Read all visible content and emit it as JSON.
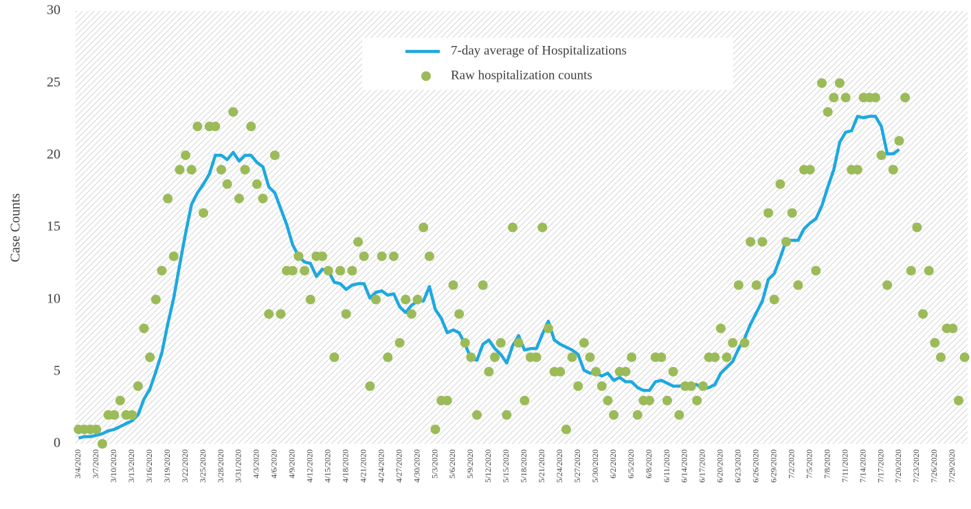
{
  "chart_data": {
    "type": "line",
    "y_label": "Case Counts",
    "ylim": [
      0,
      30
    ],
    "yticks": [
      0,
      5,
      10,
      15,
      20,
      25,
      30
    ],
    "grid": false,
    "legend": "top",
    "categories": [
      "3/4/2020",
      null,
      null,
      "3/7/2020",
      null,
      null,
      "3/10/2020",
      null,
      null,
      "3/13/2020",
      null,
      null,
      "3/16/2020",
      null,
      null,
      "3/19/2020",
      null,
      null,
      "3/22/2020",
      null,
      null,
      "3/25/2020",
      null,
      null,
      "3/28/2020",
      null,
      null,
      "3/31/2020",
      null,
      null,
      "4/3/2020",
      null,
      null,
      "4/6/2020",
      null,
      null,
      "4/9/2020",
      null,
      null,
      "4/12/2020",
      null,
      null,
      "4/15/2020",
      null,
      null,
      "4/18/2020",
      null,
      null,
      "4/21/2020",
      null,
      null,
      "4/24/2020",
      null,
      null,
      "4/27/2020",
      null,
      null,
      "4/30/2020",
      null,
      null,
      "5/3/2020",
      null,
      null,
      "5/6/2020",
      null,
      null,
      "5/9/2020",
      null,
      null,
      "5/12/2020",
      null,
      null,
      "5/15/2020",
      null,
      null,
      "5/18/2020",
      null,
      null,
      "5/21/2020",
      null,
      null,
      "5/24/2020",
      null,
      null,
      "5/27/2020",
      null,
      null,
      "5/30/2020",
      null,
      null,
      "6/2/2020",
      null,
      null,
      "6/5/2020",
      null,
      null,
      "6/8/2020",
      null,
      null,
      "6/11/2020",
      null,
      null,
      "6/14/2020",
      null,
      null,
      "6/17/2020",
      null,
      null,
      "6/20/2020",
      null,
      null,
      "6/23/2020",
      null,
      null,
      "6/26/2020",
      null,
      null,
      "6/29/2020",
      null,
      null,
      "7/2/2020",
      null,
      null,
      "7/5/2020",
      null,
      null,
      "7/8/2020",
      null,
      null,
      "7/11/2020",
      null,
      null,
      "7/14/2020",
      null,
      null,
      "7/17/2020",
      null,
      null,
      "7/20/2020",
      null,
      null,
      "7/23/2020",
      null,
      null,
      "7/26/2020",
      null,
      null,
      "7/29/2020",
      null,
      null
    ],
    "series": [
      {
        "name": "7-day average of Hospitalizations",
        "type": "line",
        "color": "#1ea8e0",
        "values": [
          0.4,
          0.5,
          0.5,
          0.6,
          0.7,
          0.9,
          1.0,
          1.2,
          1.4,
          1.6,
          2.0,
          3.1,
          3.8,
          5,
          6.3,
          8.3,
          10.1,
          12.4,
          14.6,
          16.6,
          17.4,
          18,
          18.7,
          20,
          20,
          19.7,
          20.2,
          19.6,
          20,
          20,
          19.5,
          19.2,
          17.8,
          17.4,
          16.3,
          15.2,
          13.8,
          13,
          12.6,
          12.5,
          11.6,
          12.1,
          12,
          11.2,
          11.1,
          10.7,
          11,
          11.1,
          11.1,
          10.1,
          10.5,
          10.6,
          10.3,
          10.4,
          9.5,
          9.1,
          9.6,
          9.9,
          9.9,
          10.9,
          9.3,
          8.7,
          7.7,
          7.9,
          7.7,
          6.9,
          5.9,
          5.8,
          6.9,
          7.2,
          6.6,
          6.2,
          5.6,
          6.8,
          7.5,
          6.5,
          6.6,
          6.6,
          7.6,
          8.5,
          7.2,
          6.9,
          6.7,
          6.5,
          6.2,
          5.1,
          4.9,
          4.9,
          4.7,
          4.9,
          4.4,
          4.6,
          4.3,
          4.3,
          3.9,
          3.7,
          3.7,
          4.3,
          4.4,
          4.2,
          4.0,
          4.0,
          4.1,
          4.1,
          4.1,
          3.8,
          3.9,
          4.1,
          4.9,
          5.3,
          5.7,
          6.6,
          7.3,
          8.3,
          9.1,
          9.9,
          11.4,
          11.8,
          12.9,
          14.1,
          14.1,
          14.1,
          14.9,
          15.3,
          15.6,
          16.5,
          17.8,
          19,
          20.9,
          21.6,
          21.7,
          22.7,
          22.6,
          22.7,
          22.7,
          22,
          20.1,
          20.1,
          20.4,
          null,
          null,
          null,
          null,
          null,
          null,
          null,
          null,
          null,
          null,
          null
        ]
      },
      {
        "name": "Raw hospitalization counts",
        "type": "scatter",
        "color": "#9bbb59",
        "values": [
          1,
          1,
          1,
          1,
          0,
          2,
          2,
          3,
          2,
          2,
          4,
          8,
          6,
          10,
          12,
          17,
          13,
          19,
          20,
          19,
          22,
          16,
          22,
          22,
          19,
          18,
          23,
          17,
          19,
          22,
          18,
          17,
          9,
          20,
          9,
          12,
          12,
          13,
          12,
          10,
          13,
          13,
          12,
          6,
          12,
          9,
          12,
          14,
          13,
          4,
          10,
          13,
          6,
          13,
          7,
          10,
          9,
          10,
          15,
          13,
          1,
          3,
          3,
          11,
          9,
          7,
          6,
          2,
          11,
          5,
          6,
          7,
          2,
          15,
          7,
          3,
          6,
          6,
          15,
          8,
          5,
          5,
          1,
          6,
          4,
          7,
          6,
          5,
          4,
          3,
          2,
          5,
          5,
          6,
          2,
          3,
          3,
          6,
          6,
          3,
          5,
          2,
          4,
          4,
          3,
          4,
          6,
          6,
          8,
          6,
          7,
          11,
          7,
          14,
          11,
          14,
          16,
          10,
          18,
          14,
          16,
          11,
          19,
          19,
          12,
          25,
          23,
          24,
          25,
          24,
          19,
          19,
          24,
          24,
          24,
          20,
          11,
          19,
          21,
          24,
          12,
          15,
          9,
          12,
          7,
          6,
          8,
          8,
          3,
          6
        ]
      }
    ]
  }
}
